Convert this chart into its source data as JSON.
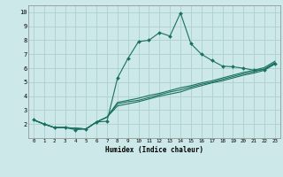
{
  "xlabel": "Humidex (Indice chaleur)",
  "bg_color": "#cce8e8",
  "grid_color": "#aed0d0",
  "line_color": "#1a7060",
  "xlim": [
    -0.5,
    23.5
  ],
  "ylim": [
    1.0,
    10.5
  ],
  "xticks": [
    0,
    1,
    2,
    3,
    4,
    5,
    6,
    7,
    8,
    9,
    10,
    11,
    12,
    13,
    14,
    15,
    16,
    17,
    18,
    19,
    20,
    21,
    22,
    23
  ],
  "yticks": [
    2,
    3,
    4,
    5,
    6,
    7,
    8,
    9,
    10
  ],
  "line1_x": [
    0,
    1,
    2,
    3,
    4,
    5,
    6,
    7,
    8,
    9,
    10,
    11,
    12,
    13,
    14,
    15,
    16,
    17,
    18,
    19,
    20,
    21,
    22,
    23
  ],
  "line1_y": [
    2.3,
    2.0,
    1.75,
    1.75,
    1.6,
    1.65,
    2.15,
    2.2,
    5.3,
    6.7,
    7.9,
    8.0,
    8.55,
    8.3,
    9.95,
    7.75,
    7.0,
    6.55,
    6.15,
    6.1,
    6.0,
    5.85,
    5.9,
    6.35
  ],
  "line2_x": [
    0,
    1,
    2,
    3,
    5,
    6,
    7,
    8,
    9,
    10,
    11,
    12,
    13,
    14,
    15,
    16,
    17,
    18,
    19,
    20,
    21,
    22,
    23
  ],
  "line2_y": [
    2.3,
    2.0,
    1.75,
    1.75,
    1.65,
    2.15,
    2.5,
    3.3,
    3.45,
    3.6,
    3.8,
    4.0,
    4.15,
    4.3,
    4.55,
    4.75,
    4.95,
    5.1,
    5.3,
    5.5,
    5.65,
    5.85,
    6.3
  ],
  "line3_x": [
    0,
    1,
    2,
    3,
    5,
    6,
    7,
    8,
    9,
    10,
    11,
    12,
    13,
    14,
    15,
    16,
    17,
    18,
    19,
    20,
    21,
    22,
    23
  ],
  "line3_y": [
    2.3,
    2.0,
    1.75,
    1.75,
    1.65,
    2.15,
    2.5,
    3.45,
    3.6,
    3.7,
    3.9,
    4.1,
    4.3,
    4.45,
    4.65,
    4.85,
    5.0,
    5.2,
    5.4,
    5.6,
    5.75,
    5.95,
    6.4
  ],
  "line4_x": [
    0,
    1,
    2,
    3,
    5,
    6,
    7,
    8,
    9,
    10,
    11,
    12,
    13,
    14,
    15,
    16,
    17,
    18,
    19,
    20,
    21,
    22,
    23
  ],
  "line4_y": [
    2.3,
    2.0,
    1.75,
    1.75,
    1.65,
    2.15,
    2.5,
    3.55,
    3.7,
    3.85,
    4.05,
    4.2,
    4.4,
    4.6,
    4.75,
    4.95,
    5.1,
    5.3,
    5.5,
    5.7,
    5.85,
    6.05,
    6.5
  ]
}
